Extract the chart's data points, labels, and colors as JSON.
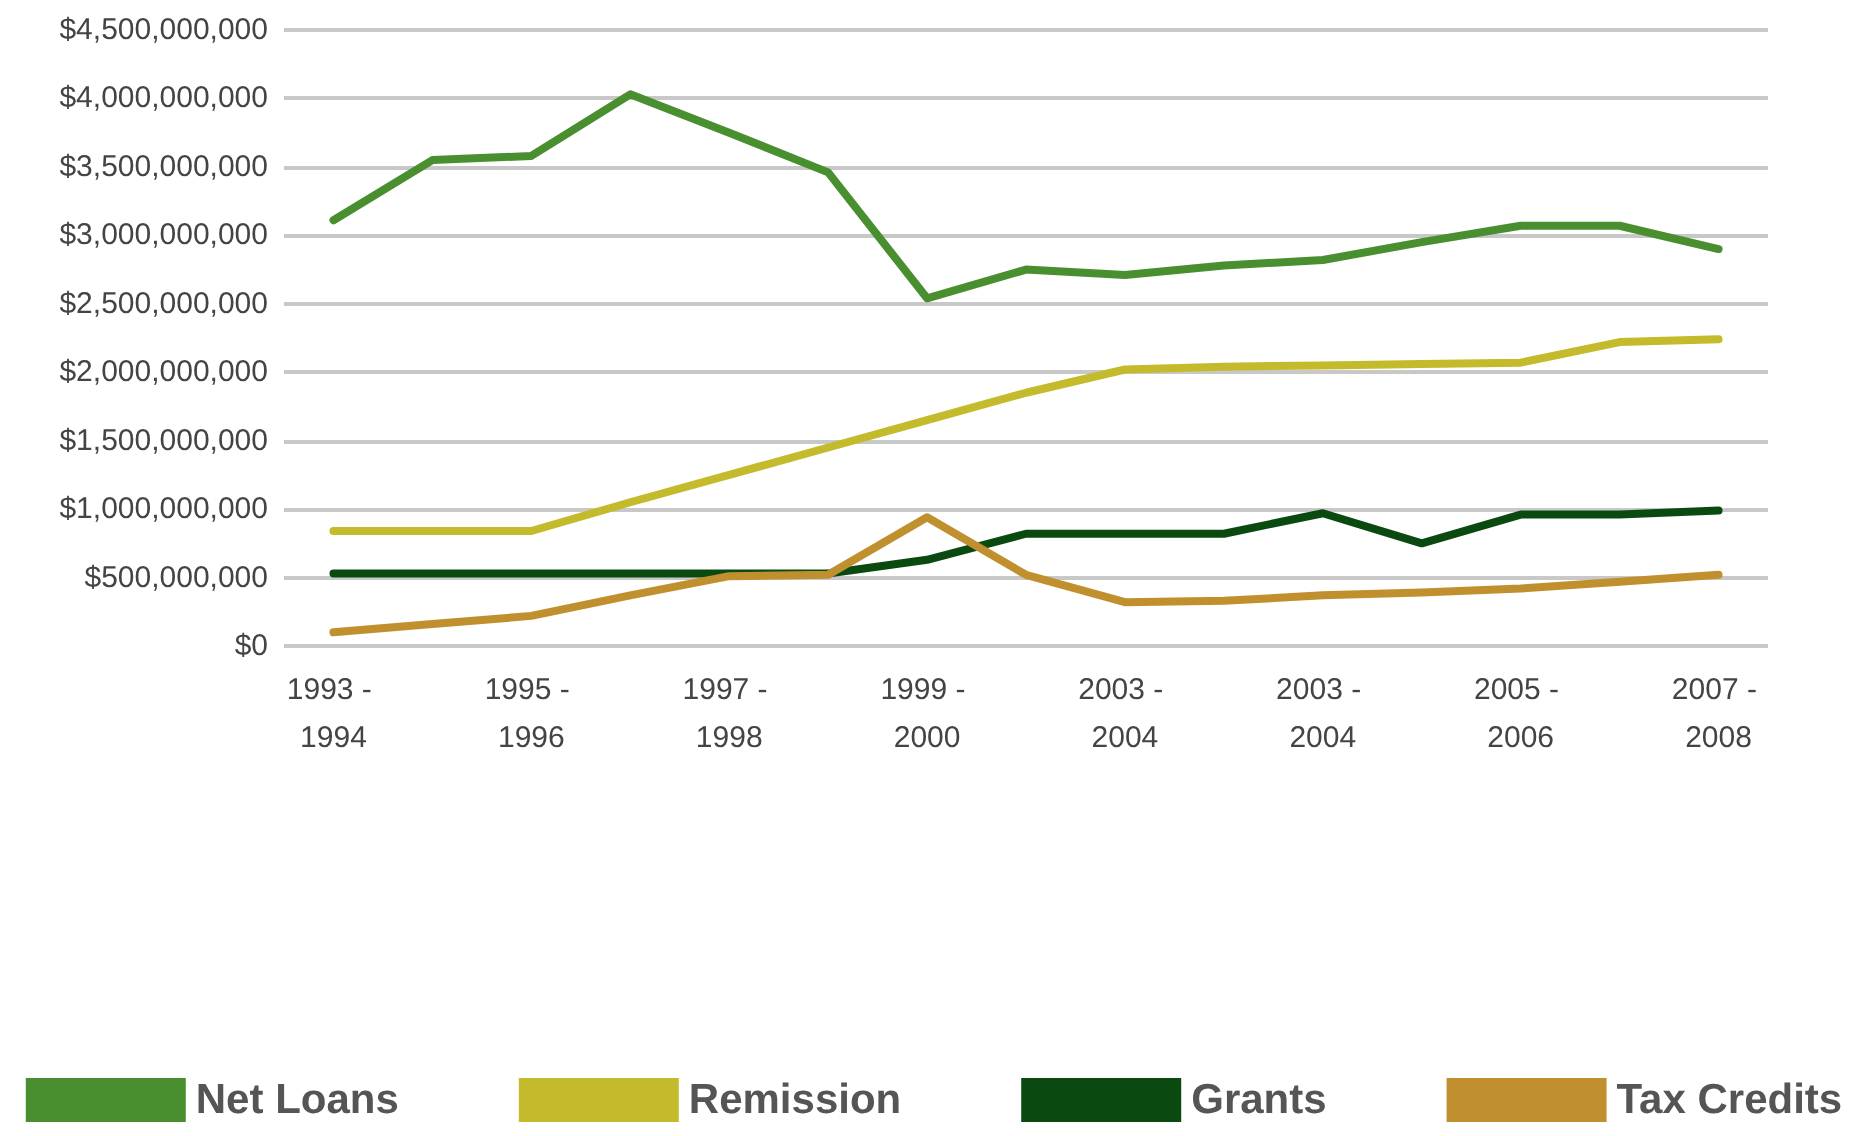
{
  "chart_data": {
    "type": "line",
    "categories": [
      "1993 - 1994",
      null,
      "1995 - 1996",
      null,
      "1997 - 1998",
      null,
      "1999 - 2000",
      null,
      "2003 - 2004",
      null,
      "2003 - 2004",
      null,
      "2005 - 2006",
      null,
      "2007 - 2008"
    ],
    "series": [
      {
        "name": "Net Loans",
        "color": "#4a8f2f",
        "values": [
          3110000000,
          3550000000,
          3580000000,
          4030000000,
          3750000000,
          3460000000,
          2540000000,
          2750000000,
          2710000000,
          2780000000,
          2820000000,
          2950000000,
          3070000000,
          3070000000,
          2900000000
        ]
      },
      {
        "name": "Remission",
        "color": "#c3bb2c",
        "values": [
          840000000,
          840000000,
          840000000,
          1050000000,
          1250000000,
          1450000000,
          1650000000,
          1850000000,
          2020000000,
          2040000000,
          2050000000,
          2060000000,
          2070000000,
          2220000000,
          2240000000
        ]
      },
      {
        "name": "Grants",
        "color": "#0a4a10",
        "values": [
          530000000,
          530000000,
          530000000,
          530000000,
          530000000,
          530000000,
          630000000,
          820000000,
          820000000,
          820000000,
          970000000,
          750000000,
          960000000,
          960000000,
          990000000
        ]
      },
      {
        "name": "Tax Credits",
        "color": "#c0902e",
        "values": [
          100000000,
          160000000,
          220000000,
          370000000,
          510000000,
          520000000,
          940000000,
          520000000,
          320000000,
          330000000,
          370000000,
          390000000,
          420000000,
          470000000,
          520000000
        ]
      }
    ],
    "ylim": [
      0,
      4500000000
    ],
    "yticks": [
      {
        "value": 0,
        "label": "$0"
      },
      {
        "value": 500000000,
        "label": "$500,000,000"
      },
      {
        "value": 1000000000,
        "label": "$1,000,000,000"
      },
      {
        "value": 1500000000,
        "label": "$1,500,000,000"
      },
      {
        "value": 2000000000,
        "label": "$2,000,000,000"
      },
      {
        "value": 2500000000,
        "label": "$2,500,000,000"
      },
      {
        "value": 3000000000,
        "label": "$3,000,000,000"
      },
      {
        "value": 3500000000,
        "label": "$3,500,000,000"
      },
      {
        "value": 4000000000,
        "label": "$4,000,000,000"
      },
      {
        "value": 4500000000,
        "label": "$4,500,000,000"
      }
    ],
    "grid": "y",
    "legend": "bottom",
    "marker": "none",
    "line_style": "solid"
  }
}
